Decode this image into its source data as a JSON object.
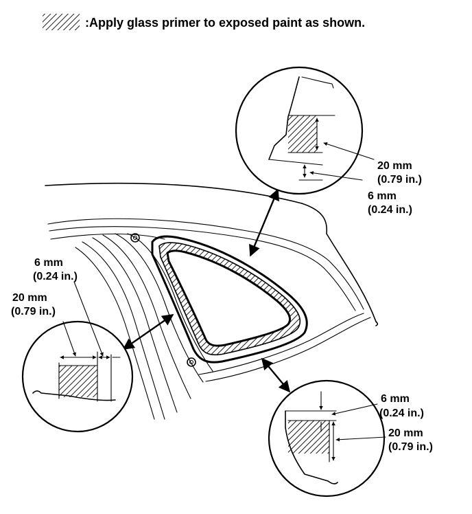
{
  "legend": {
    "text": ":Apply glass primer to exposed paint as shown."
  },
  "callouts": {
    "top": {
      "width_mm": "20 mm",
      "width_in": "(0.79 in.)",
      "gap_mm": "6 mm",
      "gap_in": "(0.24 in.)"
    },
    "left": {
      "gap_mm": "6 mm",
      "gap_in": "(0.24 in.)",
      "width_mm": "20 mm",
      "width_in": "(0.79 in.)"
    },
    "bottom": {
      "gap_mm": "6 mm",
      "gap_in": "(0.24 in.)",
      "width_mm": "20 mm",
      "width_in": "(0.79 in.)"
    }
  }
}
